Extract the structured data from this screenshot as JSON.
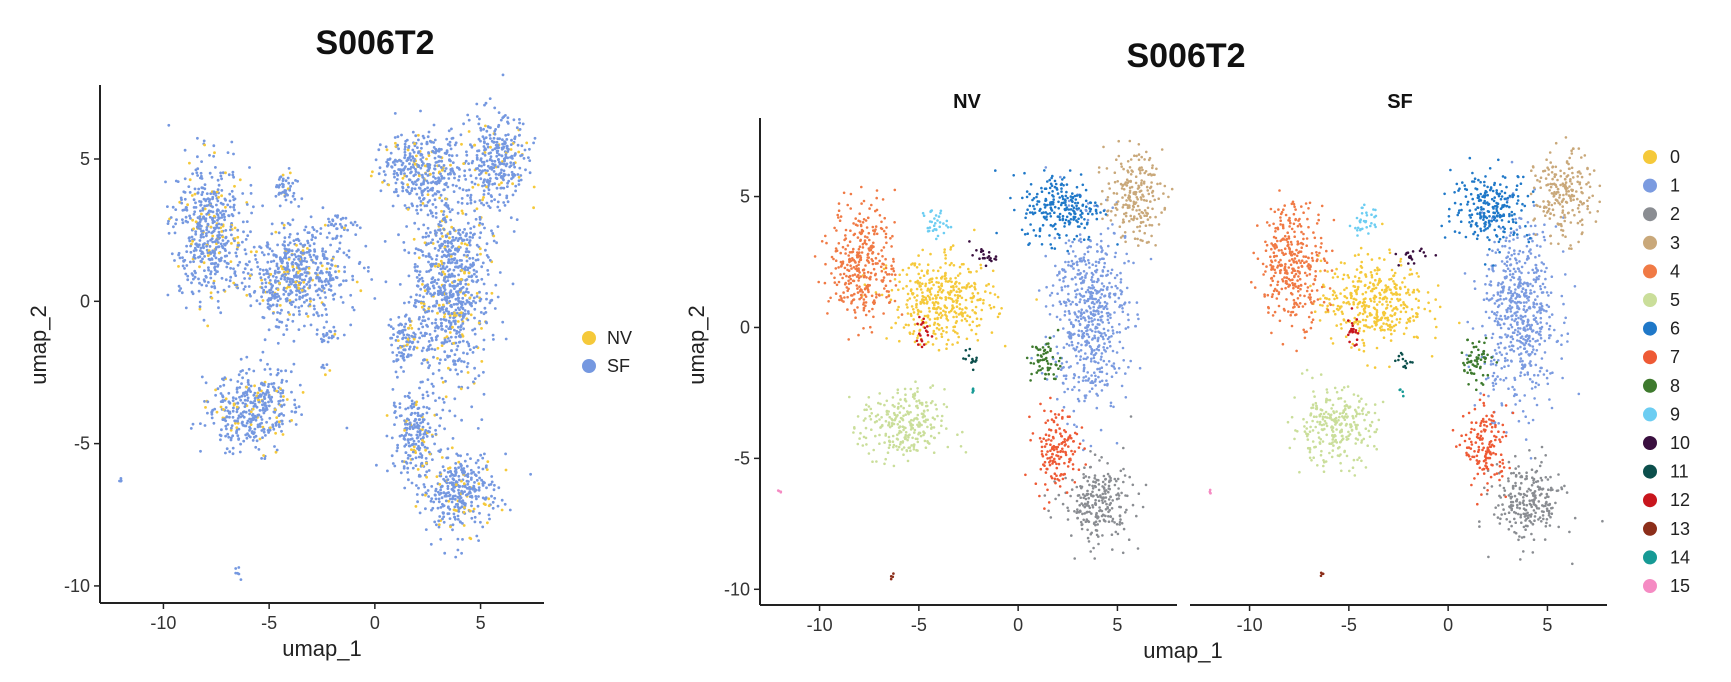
{
  "chart_data": [
    {
      "type": "scatter",
      "title": "S006T2",
      "xlabel": "umap_1",
      "ylabel": "umap_2",
      "xlim": [
        -13,
        8
      ],
      "ylim": [
        -10.6,
        7.6
      ],
      "xticks": [
        -10,
        -5,
        0,
        5
      ],
      "yticks": [
        5,
        0,
        -5,
        -10
      ],
      "legend": [
        {
          "label": "NV",
          "color": "#F5C93A"
        },
        {
          "label": "SF",
          "color": "#7598E0"
        }
      ],
      "point_colors": [
        "#7598E0",
        "#F5C93A"
      ]
    },
    {
      "type": "scatter",
      "title": "S006T2",
      "xlabel": "umap_1",
      "ylabel": "umap_2",
      "xlim": [
        -13,
        8
      ],
      "ylim": [
        -10.6,
        8.0
      ],
      "xticks": [
        -10,
        -5,
        0,
        5
      ],
      "yticks": [
        5,
        0,
        -5,
        -10
      ],
      "facets": [
        "NV",
        "SF"
      ],
      "legend": [
        {
          "label": "0",
          "color": "#F5C93A"
        },
        {
          "label": "1",
          "color": "#7B9BE0"
        },
        {
          "label": "2",
          "color": "#8A8D92"
        },
        {
          "label": "3",
          "color": "#C9A87A"
        },
        {
          "label": "4",
          "color": "#F07A45"
        },
        {
          "label": "5",
          "color": "#CADE9A"
        },
        {
          "label": "6",
          "color": "#1F78C8"
        },
        {
          "label": "7",
          "color": "#EE5A35"
        },
        {
          "label": "8",
          "color": "#3E7A2E"
        },
        {
          "label": "9",
          "color": "#6CCDF2"
        },
        {
          "label": "10",
          "color": "#3A0F3F"
        },
        {
          "label": "11",
          "color": "#0C4F4C"
        },
        {
          "label": "12",
          "color": "#C8161D"
        },
        {
          "label": "13",
          "color": "#8C2E1A"
        },
        {
          "label": "14",
          "color": "#169A95"
        },
        {
          "label": "15",
          "color": "#F58BC3"
        }
      ],
      "clusters": [
        {
          "id": 0,
          "cx": -3.8,
          "cy": 1.0,
          "rx": 2.4,
          "ry": 1.5
        },
        {
          "id": 1,
          "cx": 3.6,
          "cy": 0.5,
          "rx": 1.7,
          "ry": 3.2
        },
        {
          "id": 2,
          "cx": 4.0,
          "cy": -6.7,
          "rx": 1.6,
          "ry": 1.4
        },
        {
          "id": 3,
          "cx": 5.8,
          "cy": 5.0,
          "rx": 1.3,
          "ry": 1.5
        },
        {
          "id": 4,
          "cx": -7.8,
          "cy": 2.5,
          "rx": 1.5,
          "ry": 2.1
        },
        {
          "id": 5,
          "cx": -5.8,
          "cy": -3.8,
          "rx": 1.9,
          "ry": 1.3
        },
        {
          "id": 6,
          "cx": 2.2,
          "cy": 4.6,
          "rx": 1.8,
          "ry": 1.2
        },
        {
          "id": 7,
          "cx": 1.9,
          "cy": -4.6,
          "rx": 1.0,
          "ry": 1.4
        },
        {
          "id": 8,
          "cx": 1.4,
          "cy": -1.3,
          "rx": 0.7,
          "ry": 0.8
        },
        {
          "id": 9,
          "cx": -4.2,
          "cy": 4.0,
          "rx": 0.6,
          "ry": 0.5
        },
        {
          "id": 10,
          "cx": -1.8,
          "cy": 2.7,
          "rx": 0.6,
          "ry": 0.3
        },
        {
          "id": 11,
          "cx": -2.3,
          "cy": -1.2,
          "rx": 0.4,
          "ry": 0.3
        },
        {
          "id": 12,
          "cx": -4.8,
          "cy": -0.2,
          "rx": 0.3,
          "ry": 0.6
        },
        {
          "id": 13,
          "cx": -6.4,
          "cy": -9.5,
          "rx": 0.2,
          "ry": 0.2
        },
        {
          "id": 14,
          "cx": -2.3,
          "cy": -2.4,
          "rx": 0.2,
          "ry": 0.2
        },
        {
          "id": 15,
          "cx": -12.0,
          "cy": -6.3,
          "rx": 0.1,
          "ry": 0.1
        }
      ]
    }
  ]
}
